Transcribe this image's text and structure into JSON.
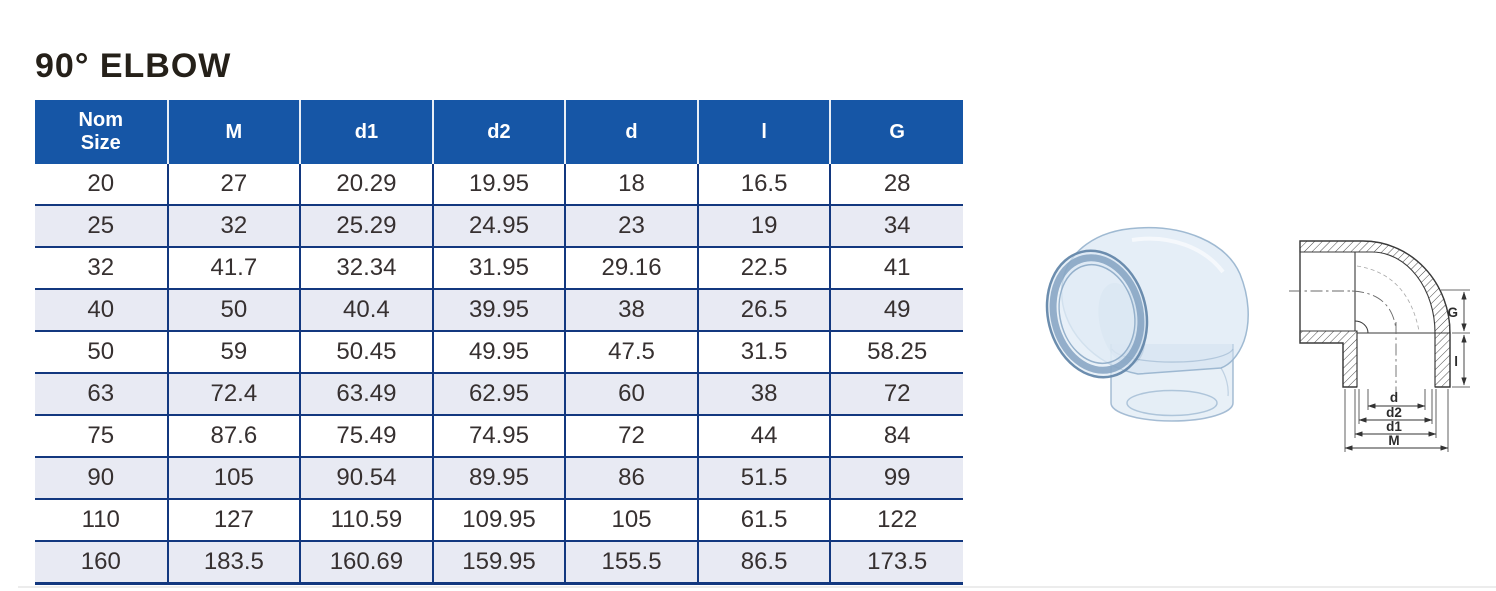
{
  "page": {
    "title": "90° ELBOW"
  },
  "theme": {
    "header_bg": "#1656A6",
    "header_text": "#ffffff",
    "grid_border": "#13387F",
    "row_bg": "#ffffff",
    "row_alt_bg": "#E8EAF3",
    "body_text": "#363030"
  },
  "table": {
    "columns": [
      {
        "key": "nom-size",
        "label": "Nom\nSize"
      },
      {
        "key": "m",
        "label": "M"
      },
      {
        "key": "d1",
        "label": "d1"
      },
      {
        "key": "d2",
        "label": "d2"
      },
      {
        "key": "d",
        "label": "d"
      },
      {
        "key": "l",
        "label": "l"
      },
      {
        "key": "g",
        "label": "G"
      }
    ],
    "rows": [
      [
        "20",
        "27",
        "20.29",
        "19.95",
        "18",
        "16.5",
        "28"
      ],
      [
        "25",
        "32",
        "25.29",
        "24.95",
        "23",
        "19",
        "34"
      ],
      [
        "32",
        "41.7",
        "32.34",
        "31.95",
        "29.16",
        "22.5",
        "41"
      ],
      [
        "40",
        "50",
        "40.4",
        "39.95",
        "38",
        "26.5",
        "49"
      ],
      [
        "50",
        "59",
        "50.45",
        "49.95",
        "47.5",
        "31.5",
        "58.25"
      ],
      [
        "63",
        "72.4",
        "63.49",
        "62.95",
        "60",
        "38",
        "72"
      ],
      [
        "75",
        "87.6",
        "75.49",
        "74.95",
        "72",
        "44",
        "84"
      ],
      [
        "90",
        "105",
        "90.54",
        "89.95",
        "86",
        "51.5",
        "99"
      ],
      [
        "110",
        "127",
        "110.59",
        "109.95",
        "105",
        "61.5",
        "122"
      ],
      [
        "160",
        "183.5",
        "160.69",
        "159.95",
        "155.5",
        "86.5",
        "173.5"
      ]
    ]
  },
  "figures": {
    "photo": {
      "name": "clear-pvc-90-elbow-photo"
    },
    "diagram": {
      "name": "elbow-cross-section-diagram",
      "labels": {
        "g": "G",
        "l": "l",
        "d": "d",
        "d2": "d2",
        "d1": "d1",
        "m": "M"
      }
    }
  }
}
